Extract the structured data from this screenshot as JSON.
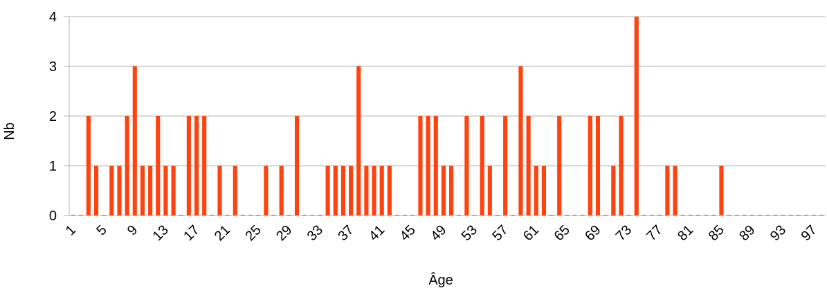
{
  "chart_data": {
    "type": "bar",
    "xlabel": "Âge",
    "ylabel": "Nb",
    "ylim": [
      0,
      4
    ],
    "yticks": [
      0,
      1,
      2,
      3,
      4
    ],
    "grid": true,
    "legend": "none",
    "colors": {
      "bar": "#ff420e",
      "grid": "#b3b3b3",
      "axis": "#b3b3b3"
    },
    "categories": [
      1,
      2,
      3,
      4,
      5,
      6,
      7,
      8,
      9,
      10,
      11,
      12,
      13,
      14,
      15,
      16,
      17,
      18,
      19,
      20,
      21,
      22,
      23,
      24,
      25,
      26,
      27,
      28,
      29,
      30,
      31,
      32,
      33,
      34,
      35,
      36,
      37,
      38,
      39,
      40,
      41,
      42,
      43,
      44,
      45,
      46,
      47,
      48,
      49,
      50,
      51,
      52,
      53,
      54,
      55,
      56,
      57,
      58,
      59,
      60,
      61,
      62,
      63,
      64,
      65,
      66,
      67,
      68,
      69,
      70,
      71,
      72,
      73,
      74,
      75,
      76,
      77,
      78,
      79,
      80,
      81,
      82,
      83,
      84,
      85,
      86,
      87,
      88,
      89,
      90,
      91,
      92,
      93,
      94,
      95,
      96,
      97,
      98
    ],
    "tick_labels": [
      1,
      5,
      9,
      13,
      17,
      21,
      25,
      29,
      33,
      37,
      41,
      45,
      49,
      53,
      57,
      61,
      65,
      69,
      73,
      77,
      81,
      85,
      89,
      93,
      97
    ],
    "values": [
      0,
      0,
      2,
      1,
      0,
      1,
      1,
      2,
      3,
      1,
      1,
      2,
      1,
      1,
      0,
      2,
      2,
      2,
      0,
      1,
      0,
      1,
      0,
      0,
      0,
      1,
      0,
      1,
      0,
      2,
      0,
      0,
      0,
      1,
      1,
      1,
      1,
      3,
      1,
      1,
      1,
      1,
      0,
      0,
      0,
      2,
      2,
      2,
      1,
      1,
      0,
      2,
      0,
      2,
      1,
      0,
      2,
      0,
      3,
      2,
      1,
      1,
      0,
      2,
      0,
      0,
      0,
      2,
      2,
      0,
      1,
      2,
      0,
      4,
      0,
      0,
      0,
      1,
      1,
      0,
      0,
      0,
      0,
      0,
      1,
      0,
      0,
      0,
      0,
      0,
      0,
      0,
      0,
      0,
      0,
      0,
      0,
      0
    ]
  }
}
